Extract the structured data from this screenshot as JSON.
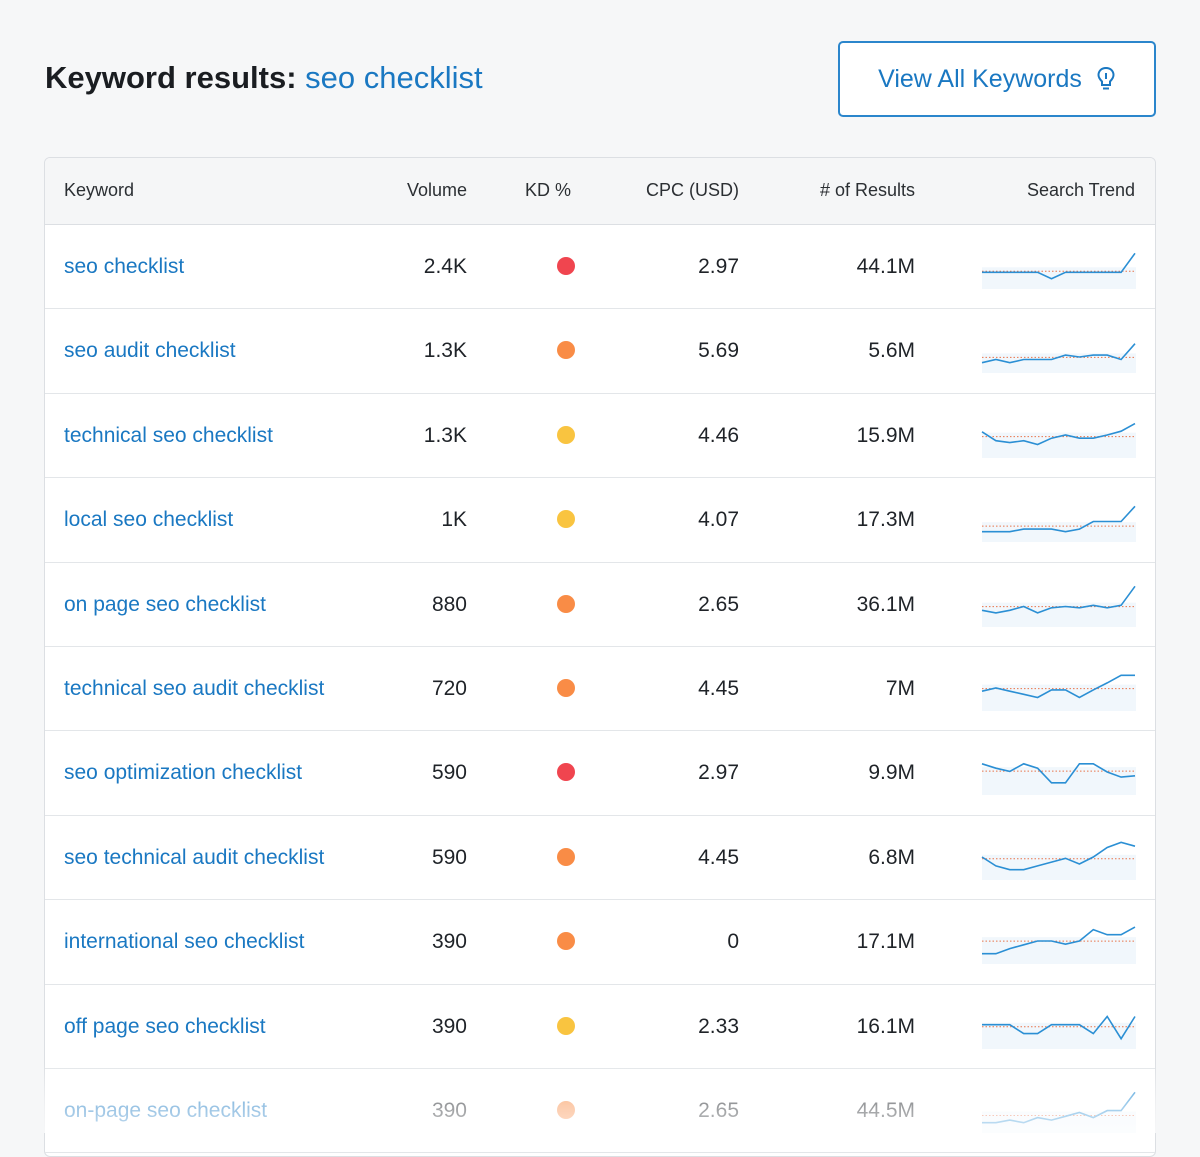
{
  "header": {
    "title_prefix": "Keyword results:",
    "title_keyword": "seo checklist",
    "view_all_label": "View All Keywords",
    "view_all_icon": "lightbulb-icon"
  },
  "colors": {
    "link": "#1a78c2",
    "kd_red": "#f0454f",
    "kd_orange": "#f98c46",
    "kd_yellow": "#f9c440",
    "trend_line": "#2b8fd4",
    "trend_avg": "#e9744a"
  },
  "table": {
    "headers": {
      "keyword": "Keyword",
      "volume": "Volume",
      "kd": "KD %",
      "cpc": "CPC (USD)",
      "results": "# of Results",
      "trend": "Search Trend"
    },
    "rows": [
      {
        "keyword": "seo checklist",
        "volume": "2.4K",
        "kd": "red",
        "cpc": "2.97",
        "results": "44.1M",
        "trend": [
          2,
          2,
          2,
          2,
          2,
          1,
          2,
          2,
          2,
          2,
          2,
          5
        ]
      },
      {
        "keyword": "seo audit checklist",
        "volume": "1.3K",
        "kd": "orange",
        "cpc": "5.69",
        "results": "5.6M",
        "trend": [
          1,
          1.5,
          1,
          1.5,
          1.5,
          1.5,
          2.2,
          1.9,
          2.2,
          2.2,
          1.5,
          4
        ]
      },
      {
        "keyword": "technical seo checklist",
        "volume": "1.3K",
        "kd": "yellow",
        "cpc": "4.46",
        "results": "15.9M",
        "trend": [
          3.5,
          2.1,
          1.8,
          2.1,
          1.5,
          2.5,
          3,
          2.5,
          2.5,
          3,
          3.6,
          4.8
        ]
      },
      {
        "keyword": "local seo checklist",
        "volume": "1K",
        "kd": "yellow",
        "cpc": "4.07",
        "results": "17.3M",
        "trend": [
          1,
          1,
          1,
          1.4,
          1.4,
          1.4,
          1,
          1.4,
          2.6,
          2.6,
          2.6,
          5
        ]
      },
      {
        "keyword": "on page seo checklist",
        "volume": "880",
        "kd": "orange",
        "cpc": "2.65",
        "results": "36.1M",
        "trend": [
          2,
          1.6,
          2,
          2.6,
          1.6,
          2.4,
          2.6,
          2.4,
          2.8,
          2.4,
          2.8,
          5.8
        ]
      },
      {
        "keyword": "technical seo audit checklist",
        "volume": "720",
        "kd": "orange",
        "cpc": "4.45",
        "results": "7M",
        "trend": [
          2.5,
          3,
          2.5,
          2,
          1.5,
          2.7,
          2.7,
          1.5,
          2.7,
          3.8,
          5,
          5
        ]
      },
      {
        "keyword": "seo optimization checklist",
        "volume": "590",
        "kd": "red",
        "cpc": "2.97",
        "results": "9.9M",
        "trend": [
          4.3,
          3.6,
          3.1,
          4.3,
          3.6,
          1.3,
          1.3,
          4.3,
          4.3,
          3,
          2.2,
          2.4
        ]
      },
      {
        "keyword": "seo technical audit checklist",
        "volume": "590",
        "kd": "orange",
        "cpc": "4.45",
        "results": "6.8M",
        "trend": [
          3,
          1.6,
          1,
          1,
          1.6,
          2.2,
          2.8,
          1.9,
          3,
          4.5,
          5.3,
          4.7
        ]
      },
      {
        "keyword": "international seo checklist",
        "volume": "390",
        "kd": "orange",
        "cpc": "0",
        "results": "17.1M",
        "trend": [
          1,
          1,
          1.8,
          2.4,
          3,
          3,
          2.5,
          3,
          4.8,
          4,
          4,
          5.2
        ]
      },
      {
        "keyword": "off page seo checklist",
        "volume": "390",
        "kd": "yellow",
        "cpc": "2.33",
        "results": "16.1M",
        "trend": [
          3.2,
          3.2,
          3.2,
          1.8,
          1.8,
          3.2,
          3.2,
          3.2,
          1.8,
          4.5,
          1,
          4.5
        ]
      },
      {
        "keyword": "on-page seo checklist",
        "volume": "390",
        "kd": "orange",
        "cpc": "2.65",
        "results": "44.5M",
        "trend": [
          1,
          1,
          1.4,
          1,
          1.8,
          1.4,
          2,
          2.6,
          1.8,
          2.9,
          2.9,
          5.8
        ]
      }
    ]
  }
}
